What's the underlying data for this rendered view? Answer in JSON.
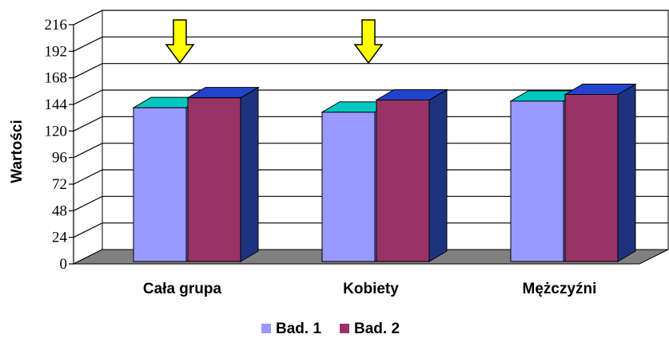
{
  "chart_data": {
    "type": "bar",
    "title": "",
    "xlabel": "",
    "ylabel": "Wartości",
    "categories": [
      "Cała grupa",
      "Kobiety",
      "Mężczyźni"
    ],
    "series": [
      {
        "name": "Bad. 1",
        "values": [
          141,
          137,
          147
        ]
      },
      {
        "name": "Bad. 2",
        "values": [
          150,
          148,
          153
        ]
      }
    ],
    "ylim": [
      0,
      216
    ],
    "yticks": [
      "0",
      "24",
      "48",
      "72",
      "96",
      "120",
      "144",
      "168",
      "192",
      "216"
    ],
    "grid": true,
    "legend": "bottom-center",
    "three_d": true,
    "highlight_arrows": [
      "Cała grupa",
      "Kobiety"
    ],
    "colors": {
      "series1_front": "#9999ff",
      "series1_top": "#00c8c0",
      "series1_side": "#6a6ad0",
      "series2_front": "#993366",
      "series2_top": "#2244cc",
      "series2_side": "#1e3380",
      "floor": "#808080",
      "arrow": "#ffff00"
    }
  }
}
